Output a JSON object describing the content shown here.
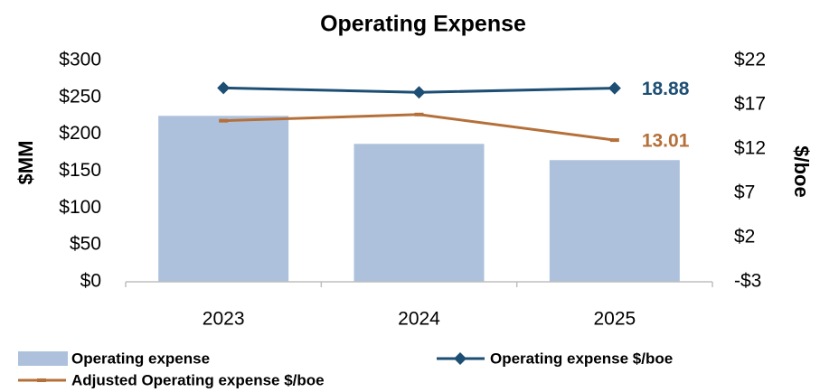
{
  "chart_data": {
    "type": "bar_line",
    "title": "Operating Expense",
    "y_label": "$MM",
    "y2_label": "$/boe",
    "categories": [
      "2023",
      "2024",
      "2025"
    ],
    "series": [
      {
        "name": "Operating expense",
        "type": "bar",
        "color": "#adc1dc",
        "values": [
          225,
          187,
          165
        ]
      },
      {
        "name": "Operating expense $/boe",
        "type": "line",
        "axis": "y2",
        "marker": "diamond",
        "color": "#1d4e74",
        "values": [
          18.9,
          18.4,
          18.88
        ],
        "value_labels": [
          null,
          null,
          "18.88"
        ]
      },
      {
        "name": "Adjusted Operating expense $/boe",
        "type": "line",
        "axis": "y2",
        "marker": "dash",
        "color": "#b5703a",
        "values": [
          15.2,
          15.9,
          13.01
        ],
        "value_labels": [
          null,
          null,
          "13.01"
        ]
      }
    ],
    "ylim": [
      0,
      300
    ],
    "yticks": [
      {
        "value": 0,
        "label": "$0"
      },
      {
        "value": 50,
        "label": "$50"
      },
      {
        "value": 100,
        "label": "$100"
      },
      {
        "value": 150,
        "label": "$150"
      },
      {
        "value": 200,
        "label": "$200"
      },
      {
        "value": 250,
        "label": "$250"
      },
      {
        "value": 300,
        "label": "$300"
      }
    ],
    "y2lim": [
      -3,
      22
    ],
    "y2ticks": [
      {
        "value": -3,
        "label": "-$3"
      },
      {
        "value": 2,
        "label": "$2"
      },
      {
        "value": 7,
        "label": "$7"
      },
      {
        "value": 12,
        "label": "$12"
      },
      {
        "value": 17,
        "label": "$17"
      },
      {
        "value": 22,
        "label": "$22"
      }
    ],
    "legend": "bottom"
  }
}
